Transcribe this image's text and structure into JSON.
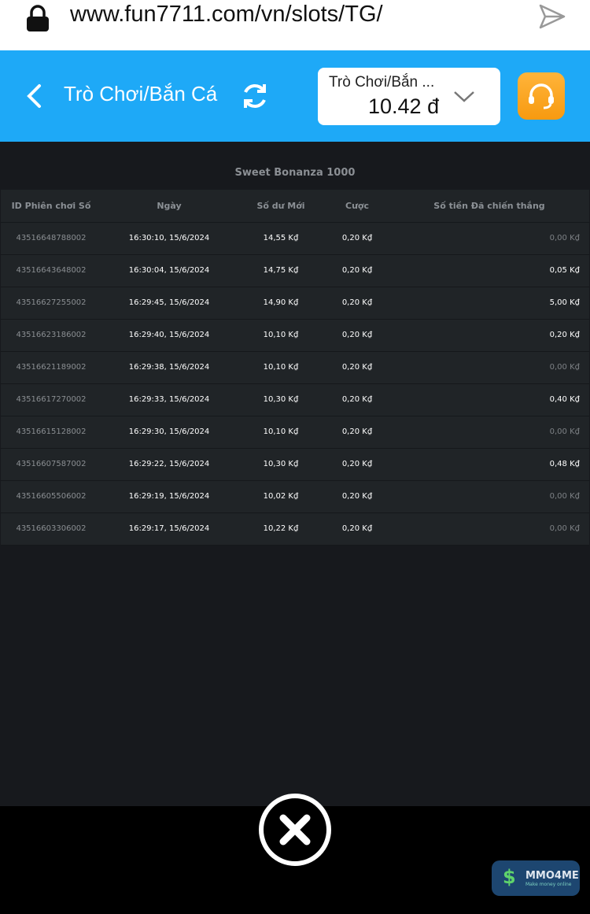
{
  "browser": {
    "url": "www.fun7711.com/vn/slots/TG/"
  },
  "header": {
    "title": "Trò Chơi/Bắn Cá",
    "select_label": "Trò Chơi/Bắn ...",
    "balance": "10.42 đ"
  },
  "game": {
    "name": "Sweet Bonanza 1000"
  },
  "table": {
    "columns": [
      "ID Phiên chơi Số",
      "Ngày",
      "Số dư Mới",
      "Cược",
      "Số tiền Đã chiến thắng"
    ],
    "rows": [
      [
        "43516648788002",
        "16:30:10, 15/6/2024",
        "14,55 K₫",
        "0,20 K₫",
        "0,00 K₫"
      ],
      [
        "43516643648002",
        "16:30:04, 15/6/2024",
        "14,75 K₫",
        "0,20 K₫",
        "0,05 K₫"
      ],
      [
        "43516627255002",
        "16:29:45, 15/6/2024",
        "14,90 K₫",
        "0,20 K₫",
        "5,00 K₫"
      ],
      [
        "43516623186002",
        "16:29:40, 15/6/2024",
        "10,10 K₫",
        "0,20 K₫",
        "0,20 K₫"
      ],
      [
        "43516621189002",
        "16:29:38, 15/6/2024",
        "10,10 K₫",
        "0,20 K₫",
        "0,00 K₫"
      ],
      [
        "43516617270002",
        "16:29:33, 15/6/2024",
        "10,30 K₫",
        "0,20 K₫",
        "0,40 K₫"
      ],
      [
        "43516615128002",
        "16:29:30, 15/6/2024",
        "10,10 K₫",
        "0,20 K₫",
        "0,00 K₫"
      ],
      [
        "43516607587002",
        "16:29:22, 15/6/2024",
        "10,30 K₫",
        "0,20 K₫",
        "0,48 K₫"
      ],
      [
        "43516605506002",
        "16:29:19, 15/6/2024",
        "10,02 K₫",
        "0,20 K₫",
        "0,00 K₫"
      ],
      [
        "43516603306002",
        "16:29:17, 15/6/2024",
        "10,22 K₫",
        "0,20 K₫",
        "0,00 K₫"
      ]
    ]
  },
  "watermark": {
    "text": "MMO4ME",
    "tagline": "Make money online"
  },
  "colors": {
    "header": "#1ea9f7",
    "support": "#f79a10",
    "background": "#17191d"
  }
}
